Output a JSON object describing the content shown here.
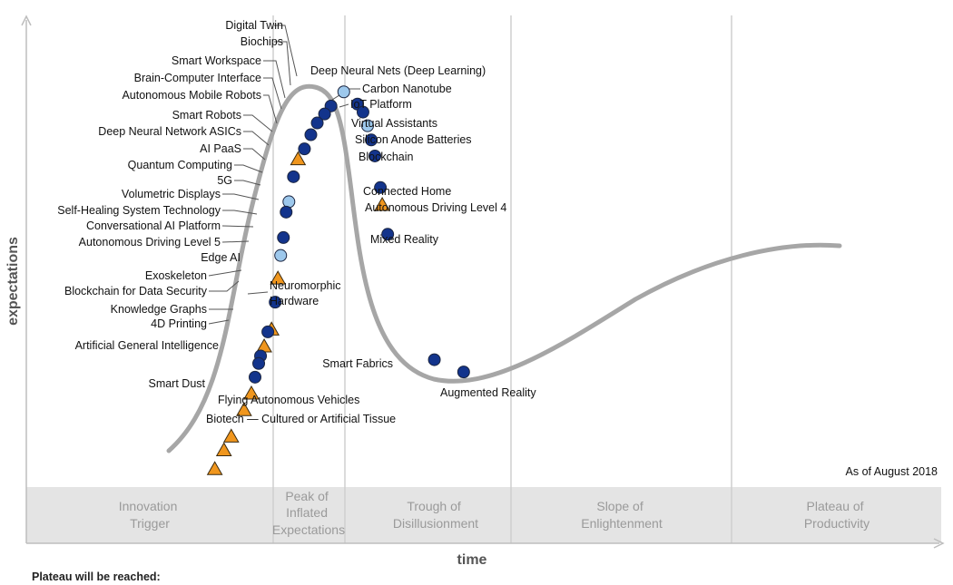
{
  "chart_data": {
    "type": "scatter",
    "title": "",
    "xlabel": "time",
    "ylabel": "expectations",
    "as_of": "As of August 2018",
    "footer": "Plateau will be reached:",
    "phases": [
      {
        "id": "innovation",
        "lines": [
          "Innovation",
          "Trigger"
        ]
      },
      {
        "id": "peak",
        "lines": [
          "Peak of",
          "Inflated",
          "Expectations"
        ]
      },
      {
        "id": "trough",
        "lines": [
          "Trough of",
          "Disillusionment"
        ]
      },
      {
        "id": "slope",
        "lines": [
          "Slope of",
          "Enlightenment"
        ]
      },
      {
        "id": "plateau",
        "lines": [
          "Plateau of",
          "Productivity"
        ]
      }
    ],
    "marker_colors": {
      "dark": "#13348c",
      "light": "#9dc8ec",
      "triangle": "#f0961d"
    },
    "series": [
      {
        "name": "Digital Twin",
        "shape": "circle-dark",
        "x": 0.333,
        "y": 0.808
      },
      {
        "name": "Biochips",
        "shape": "circle-dark",
        "x": 0.326,
        "y": 0.791
      },
      {
        "name": "Smart Workspace",
        "shape": "circle-dark",
        "x": 0.318,
        "y": 0.772
      },
      {
        "name": "Brain-Computer Interface",
        "shape": "circle-dark",
        "x": 0.311,
        "y": 0.747
      },
      {
        "name": "Autonomous Mobile Robots",
        "shape": "circle-dark",
        "x": 0.304,
        "y": 0.717
      },
      {
        "name": "Smart Robots",
        "shape": "triangle",
        "x": 0.297,
        "y": 0.695
      },
      {
        "name": "Deep Neural Network ASICs",
        "shape": "circle-dark",
        "x": 0.292,
        "y": 0.658
      },
      {
        "name": "AI PaaS",
        "shape": "circle-light",
        "x": 0.287,
        "y": 0.605
      },
      {
        "name": "Quantum Computing",
        "shape": "circle-dark",
        "x": 0.284,
        "y": 0.583
      },
      {
        "name": "5G",
        "shape": "circle-dark",
        "x": 0.281,
        "y": 0.529
      },
      {
        "name": "Volumetric Displays",
        "shape": "circle-light",
        "x": 0.278,
        "y": 0.491
      },
      {
        "name": "Self-Healing System Technology",
        "shape": "triangle",
        "x": 0.275,
        "y": 0.442
      },
      {
        "name": "Conversational AI Platform",
        "shape": "circle-dark",
        "x": 0.272,
        "y": 0.392
      },
      {
        "name": "Autonomous Driving Level 5",
        "shape": "triangle",
        "x": 0.268,
        "y": 0.334
      },
      {
        "name": "Edge AI",
        "shape": "circle-dark",
        "x": 0.264,
        "y": 0.329
      },
      {
        "name": "Exoskeleton",
        "shape": "triangle",
        "x": 0.26,
        "y": 0.298
      },
      {
        "name": "Blockchain for Data Security",
        "shape": "circle-dark",
        "x": 0.256,
        "y": 0.278
      },
      {
        "name": "Neuromorphic Hardware",
        "shape": "circle-dark",
        "x": 0.254,
        "y": 0.262
      },
      {
        "name": "Knowledge Graphs",
        "shape": "circle-dark",
        "x": 0.25,
        "y": 0.233
      },
      {
        "name": "4D Printing",
        "shape": "triangle",
        "x": 0.246,
        "y": 0.198
      },
      {
        "name": "Artificial General Intelligence",
        "shape": "triangle",
        "x": 0.238,
        "y": 0.163
      },
      {
        "name": "Smart Dust",
        "shape": "triangle",
        "x": 0.224,
        "y": 0.107
      },
      {
        "name": "Flying Autonomous Vehicles",
        "shape": "triangle",
        "x": 0.216,
        "y": 0.078
      },
      {
        "name": "Biotech — Cultured or Artificial Tissue",
        "shape": "triangle",
        "x": 0.206,
        "y": 0.038
      },
      {
        "name": "Deep Neural Nets (Deep Learning)",
        "shape": "circle-light",
        "x": 0.347,
        "y": 0.838
      },
      {
        "name": "Carbon Nanotube",
        "shape": "circle-dark",
        "x": 0.362,
        "y": 0.812
      },
      {
        "name": "IoT Platform",
        "shape": "circle-dark",
        "x": 0.368,
        "y": 0.795
      },
      {
        "name": "Virtual Assistants",
        "shape": "circle-light",
        "x": 0.373,
        "y": 0.766
      },
      {
        "name": "Silicon Anode Batteries",
        "shape": "circle-dark",
        "x": 0.377,
        "y": 0.736
      },
      {
        "name": "Blockchain",
        "shape": "circle-dark",
        "x": 0.381,
        "y": 0.702
      },
      {
        "name": "Connected Home",
        "shape": "circle-dark",
        "x": 0.387,
        "y": 0.635
      },
      {
        "name": "Autonomous Driving Level 4",
        "shape": "triangle",
        "x": 0.389,
        "y": 0.598
      },
      {
        "name": "Mixed Reality",
        "shape": "circle-dark",
        "x": 0.395,
        "y": 0.536
      },
      {
        "name": "Smart Fabrics",
        "shape": "circle-dark",
        "x": 0.446,
        "y": 0.27
      },
      {
        "name": "Augmented Reality",
        "shape": "circle-dark",
        "x": 0.478,
        "y": 0.244
      }
    ]
  }
}
